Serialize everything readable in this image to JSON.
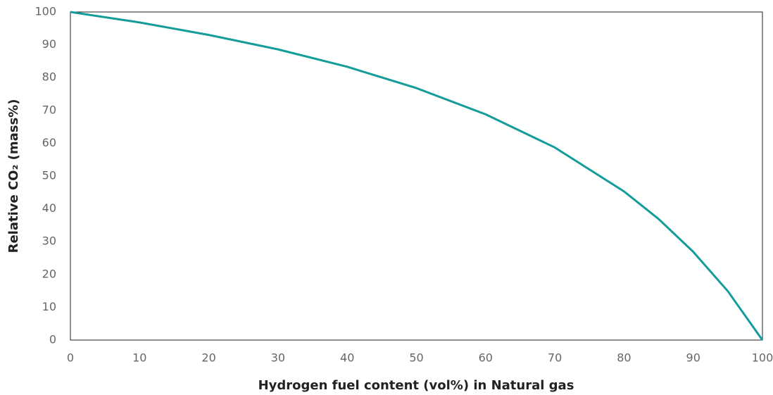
{
  "chart_data": {
    "type": "line",
    "xlabel": "Hydrogen fuel content (vol%) in Natural gas",
    "ylabel": "Relative CO₂ (mass%)",
    "x": [
      0,
      10,
      20,
      30,
      40,
      50,
      60,
      70,
      80,
      85,
      90,
      95,
      100
    ],
    "series": [
      {
        "name": "Relative CO₂",
        "color": "#149c9a",
        "values": [
          100,
          96.8,
          93.0,
          88.6,
          83.3,
          76.8,
          68.8,
          58.7,
          45.3,
          36.9,
          26.9,
          14.9,
          0
        ]
      }
    ],
    "xlim": [
      0,
      100
    ],
    "xticks": [
      0,
      10,
      20,
      30,
      40,
      50,
      60,
      70,
      80,
      90,
      100
    ],
    "ylim": [
      0,
      100
    ],
    "yticks": [
      0,
      10,
      20,
      30,
      40,
      50,
      60,
      70,
      80,
      90,
      100
    ],
    "grid": false
  }
}
